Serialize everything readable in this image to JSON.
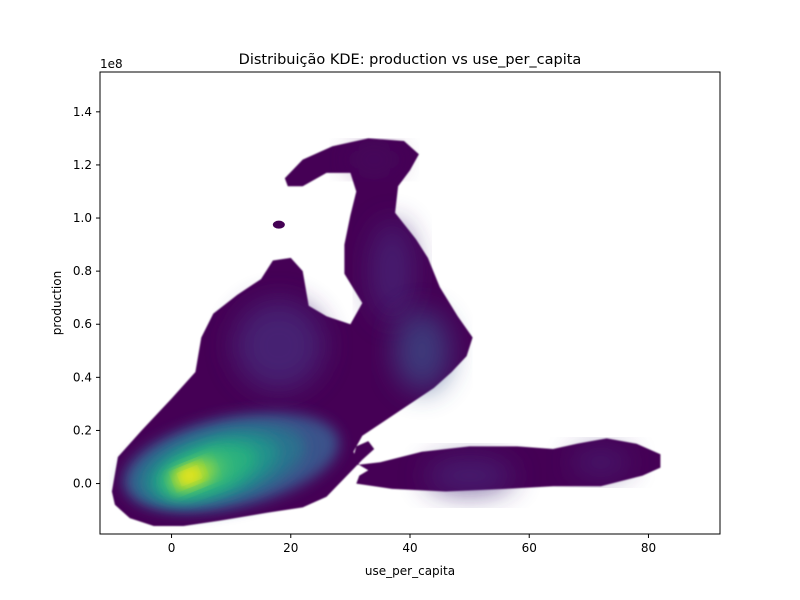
{
  "chart_data": {
    "type": "heatmap",
    "subtype": "kde-density",
    "title": "Distribuição KDE: production vs use_per_capita",
    "xlabel": "use_per_capita",
    "ylabel": "production",
    "y_offset_label": "1e8",
    "colormap": "viridis",
    "xlim": [
      -12,
      92
    ],
    "ylim": [
      -0.19,
      1.55
    ],
    "x_ticks": [
      0,
      20,
      40,
      60,
      80
    ],
    "x_tick_labels": [
      "0",
      "20",
      "40",
      "60",
      "80"
    ],
    "y_ticks": [
      0.0,
      0.2,
      0.4,
      0.6,
      0.8,
      1.0,
      1.2,
      1.4
    ],
    "y_tick_labels": [
      "0.0",
      "0.2",
      "0.4",
      "0.6",
      "0.8",
      "1.0",
      "1.2",
      "1.4"
    ],
    "grid": false,
    "density_peaks": [
      {
        "x": 3,
        "y": 0.03,
        "level": "highest"
      },
      {
        "x": 12,
        "y": 0.07,
        "level": "high"
      },
      {
        "x": 18,
        "y": 0.52,
        "level": "low"
      },
      {
        "x": 36,
        "y": 0.8,
        "level": "low"
      },
      {
        "x": 42,
        "y": 0.52,
        "level": "low"
      },
      {
        "x": 34,
        "y": 1.22,
        "level": "lowest"
      },
      {
        "x": 50,
        "y": 0.03,
        "level": "low"
      },
      {
        "x": 72,
        "y": 0.08,
        "level": "low"
      }
    ],
    "colors": {
      "low": "#440154",
      "mid": "#31688e",
      "high": "#35b779",
      "highest": "#fde725"
    }
  }
}
